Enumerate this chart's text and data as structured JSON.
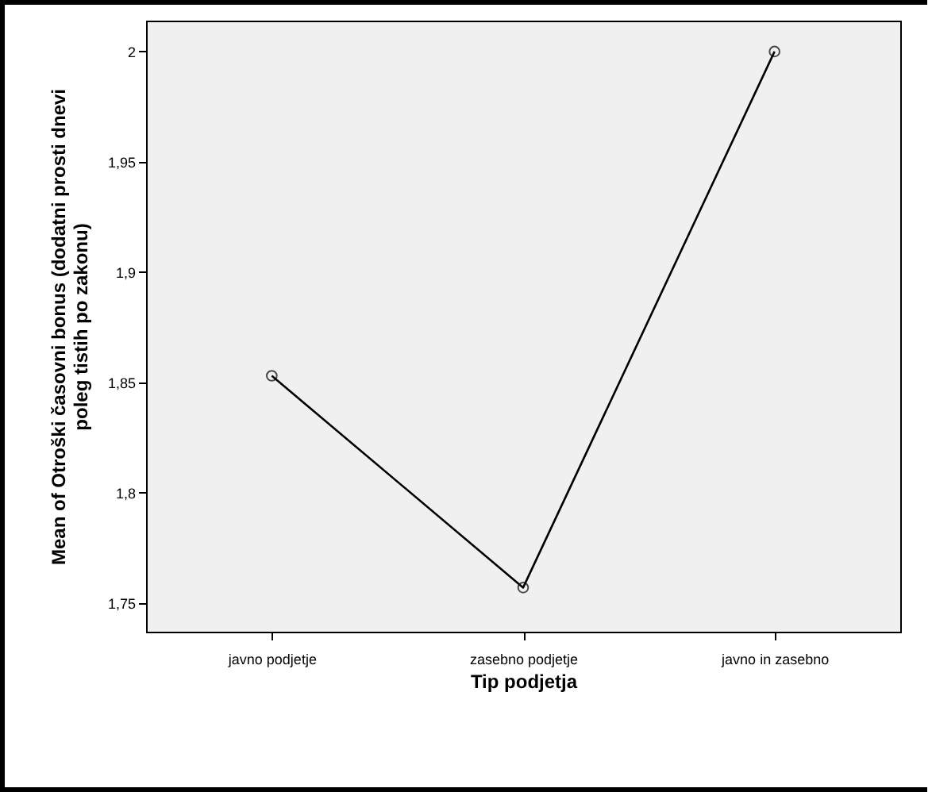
{
  "chart_data": {
    "type": "line",
    "xlabel": "Tip podjetja",
    "ylabel": "Mean of Otroški časovni bonus (dodatni prosti dnevi poleg tistih po zakonu)",
    "categories": [
      "javno podjetje",
      "zasebno podjetje",
      "javno in zasebno"
    ],
    "series": [
      {
        "color": "#000000",
        "values": [
          1.853,
          1.757,
          2.0
        ]
      }
    ],
    "ylim": [
      1.737,
      2.014
    ],
    "yticks": [
      {
        "value": 1.75,
        "label": "1,75"
      },
      {
        "value": 1.8,
        "label": "1,8"
      },
      {
        "value": 1.85,
        "label": "1,85"
      },
      {
        "value": 1.9,
        "label": "1,9"
      },
      {
        "value": 1.95,
        "label": "1,95"
      },
      {
        "value": 2,
        "label": "2"
      }
    ],
    "marker": "circle",
    "line_style": "solid"
  }
}
